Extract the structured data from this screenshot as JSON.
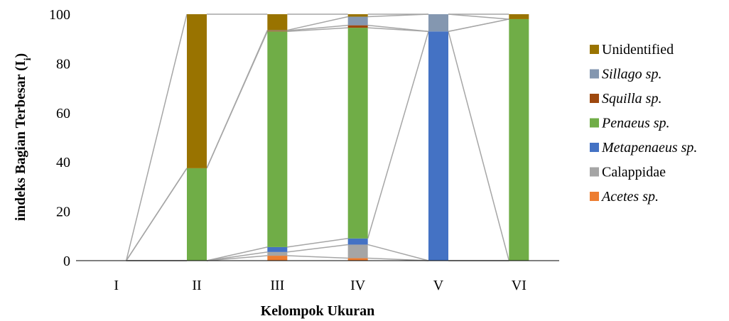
{
  "chart_data": {
    "type": "bar",
    "stacked": true,
    "percent": true,
    "xlabel": "Kelompok Ukuran",
    "ylabel_main": "imdeks Bagian Terbesar (I",
    "ylabel_sub": "i",
    "ylabel_close": ")",
    "ylim": [
      0,
      100
    ],
    "yticks": [
      0,
      20,
      40,
      60,
      80,
      100
    ],
    "categories": [
      "I",
      "II",
      "III",
      "IV",
      "V",
      "VI"
    ],
    "legend_position": "right",
    "series_lines": true,
    "series": [
      {
        "name": "Acetes sp.",
        "italic": true,
        "color": "#ED7D31",
        "values": [
          0,
          0,
          2,
          1,
          0,
          0
        ]
      },
      {
        "name": "Calappidae",
        "italic": false,
        "color": "#A5A5A5",
        "values": [
          0,
          0,
          1.5,
          5.5,
          0,
          0
        ]
      },
      {
        "name": "Metapenaeus sp.",
        "italic": true,
        "color": "#4472C4",
        "values": [
          0,
          0,
          2,
          2.5,
          93,
          0
        ]
      },
      {
        "name": "Penaeus sp.",
        "italic": true,
        "color": "#70AD47",
        "values": [
          0,
          37.5,
          87.5,
          85.5,
          0,
          98
        ]
      },
      {
        "name": "Squilla sp.",
        "italic": true,
        "color": "#9E480E",
        "values": [
          0,
          0,
          0.3,
          1,
          0,
          0
        ]
      },
      {
        "name": "Sillago sp.",
        "italic": true,
        "color": "#8497B0",
        "values": [
          0,
          0,
          0.2,
          3.5,
          7,
          0
        ]
      },
      {
        "name": "Unidentified",
        "italic": false,
        "color": "#997300",
        "values": [
          0,
          62.5,
          6.5,
          1,
          0,
          2
        ]
      }
    ]
  }
}
